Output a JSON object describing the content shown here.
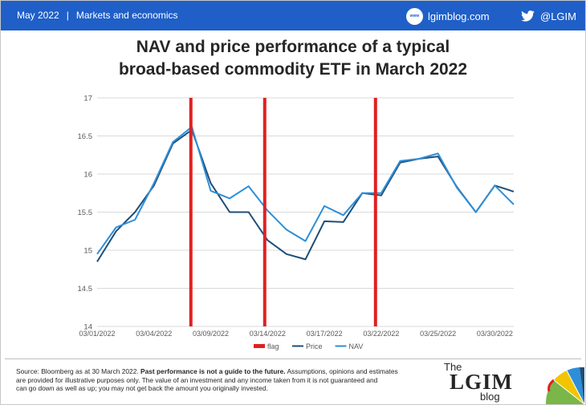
{
  "header": {
    "date": "May 2022",
    "separator": "|",
    "section": "Markets and economics",
    "site_logo_text": "www",
    "site": "lgimblog.com",
    "twitter_handle": "@LGIM",
    "background_color": "#1f5fc7"
  },
  "title_line1": "NAV and price performance of a typical",
  "title_line2": "broad-based commodity ETF in March 2022",
  "chart_data": {
    "type": "line",
    "x": [
      "03/01/2022",
      "03/02/2022",
      "03/03/2022",
      "03/04/2022",
      "03/07/2022",
      "03/08/2022",
      "03/09/2022",
      "03/10/2022",
      "03/11/2022",
      "03/14/2022",
      "03/15/2022",
      "03/16/2022",
      "03/17/2022",
      "03/18/2022",
      "03/21/2022",
      "03/22/2022",
      "03/23/2022",
      "03/24/2022",
      "03/25/2022",
      "03/28/2022",
      "03/29/2022",
      "03/30/2022",
      "03/31/2022"
    ],
    "x_tick_labels": [
      "03/01/2022",
      "03/04/2022",
      "03/09/2022",
      "03/14/2022",
      "03/17/2022",
      "03/22/2022",
      "03/25/2022",
      "03/30/2022"
    ],
    "x_tick_indices": [
      0,
      3,
      6,
      9,
      12,
      15,
      18,
      21
    ],
    "ylim": [
      14,
      17
    ],
    "y_ticks": [
      "14",
      "14.5",
      "15",
      "15.5",
      "16",
      "16.5",
      "17"
    ],
    "grid": true,
    "legend_position": "bottom",
    "series": [
      {
        "name": "flag",
        "type": "vertical-marker",
        "color": "#e02020",
        "x_positions": [
          4.95,
          8.85,
          14.7
        ]
      },
      {
        "name": "Price",
        "color": "#1f4e79",
        "values": [
          14.85,
          15.25,
          15.5,
          15.85,
          16.4,
          16.58,
          15.88,
          15.5,
          15.5,
          15.13,
          14.95,
          14.88,
          15.38,
          15.37,
          15.75,
          15.72,
          16.15,
          16.2,
          16.23,
          15.83,
          15.5,
          15.85,
          15.77
        ]
      },
      {
        "name": "NAV",
        "color": "#2e8fd8",
        "values": [
          14.95,
          15.3,
          15.4,
          15.88,
          16.42,
          16.62,
          15.78,
          15.68,
          15.84,
          15.52,
          15.27,
          15.12,
          15.58,
          15.46,
          15.75,
          15.75,
          16.17,
          16.2,
          16.27,
          15.82,
          15.5,
          15.85,
          15.6
        ]
      }
    ]
  },
  "footnote": {
    "source": "Source: Bloomberg as at 30 March 2022.",
    "bold": "Past performance is not a guide to the future.",
    "text1": "Assumptions, opinions and estimates",
    "text2": "are provided for illustrative purposes only. The value of an investment and any income taken from it is not guaranteed and",
    "text3": "can go down as well as up; you may not get back the amount you originally invested."
  },
  "brand": {
    "the": "The",
    "lgim": "LGIM",
    "blog": "blog"
  }
}
